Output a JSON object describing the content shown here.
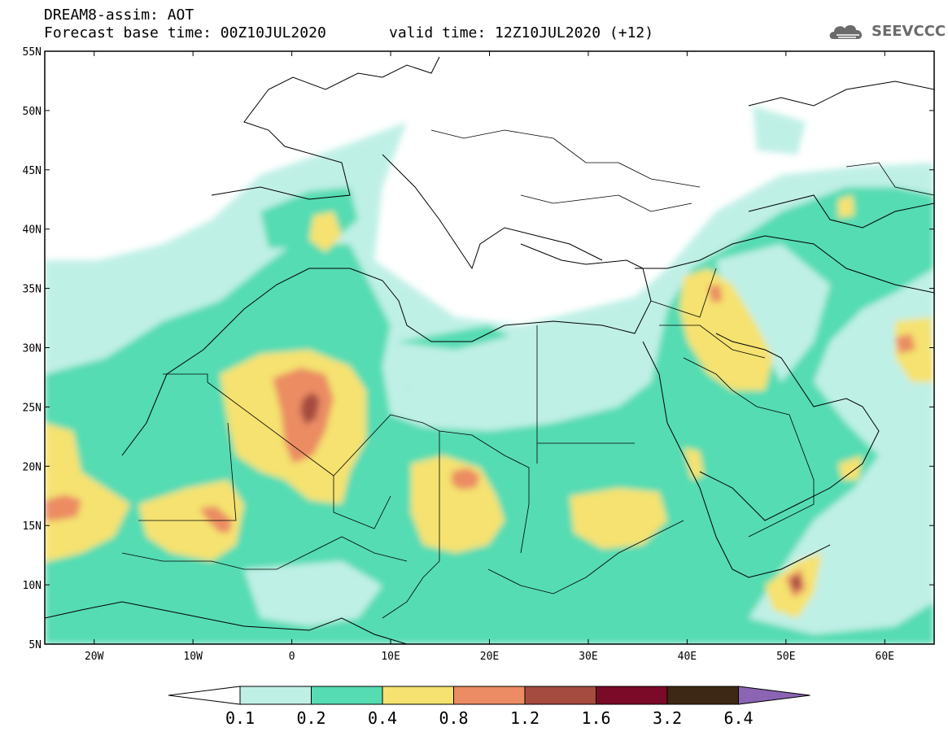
{
  "header": {
    "title_line1": "DREAM8-assim: AOT",
    "title_line2": "Forecast base time: 00Z10JUL2020",
    "valid_time": "valid time: 12Z10JUL2020 (+12)"
  },
  "logo": {
    "text": "SEEVCCC",
    "icon": "cloud-icon"
  },
  "map": {
    "lon_range": [
      -25,
      65
    ],
    "lat_range": [
      5,
      55
    ],
    "lat_ticks": [
      "55N",
      "50N",
      "45N",
      "40N",
      "35N",
      "30N",
      "25N",
      "20N",
      "15N",
      "10N",
      "5N"
    ],
    "lon_ticks": [
      "20W",
      "10W",
      "0",
      "10E",
      "20E",
      "30E",
      "40E",
      "50E",
      "60E"
    ]
  },
  "colorbar": {
    "labels": [
      "0.1",
      "0.2",
      "0.4",
      "0.8",
      "1.2",
      "1.6",
      "3.2",
      "6.4"
    ],
    "colors": [
      "#ffffff",
      "#bff0e6",
      "#55dcb2",
      "#f5e270",
      "#eb8c64",
      "#a64b3f",
      "#7a0a28",
      "#3c2814",
      "#8c64b4"
    ]
  },
  "colors": {
    "lightcyan": "#bff0e6",
    "green": "#55dcb2",
    "yellow": "#f5e270",
    "orange": "#eb8c64",
    "brown": "#a64b3f"
  }
}
